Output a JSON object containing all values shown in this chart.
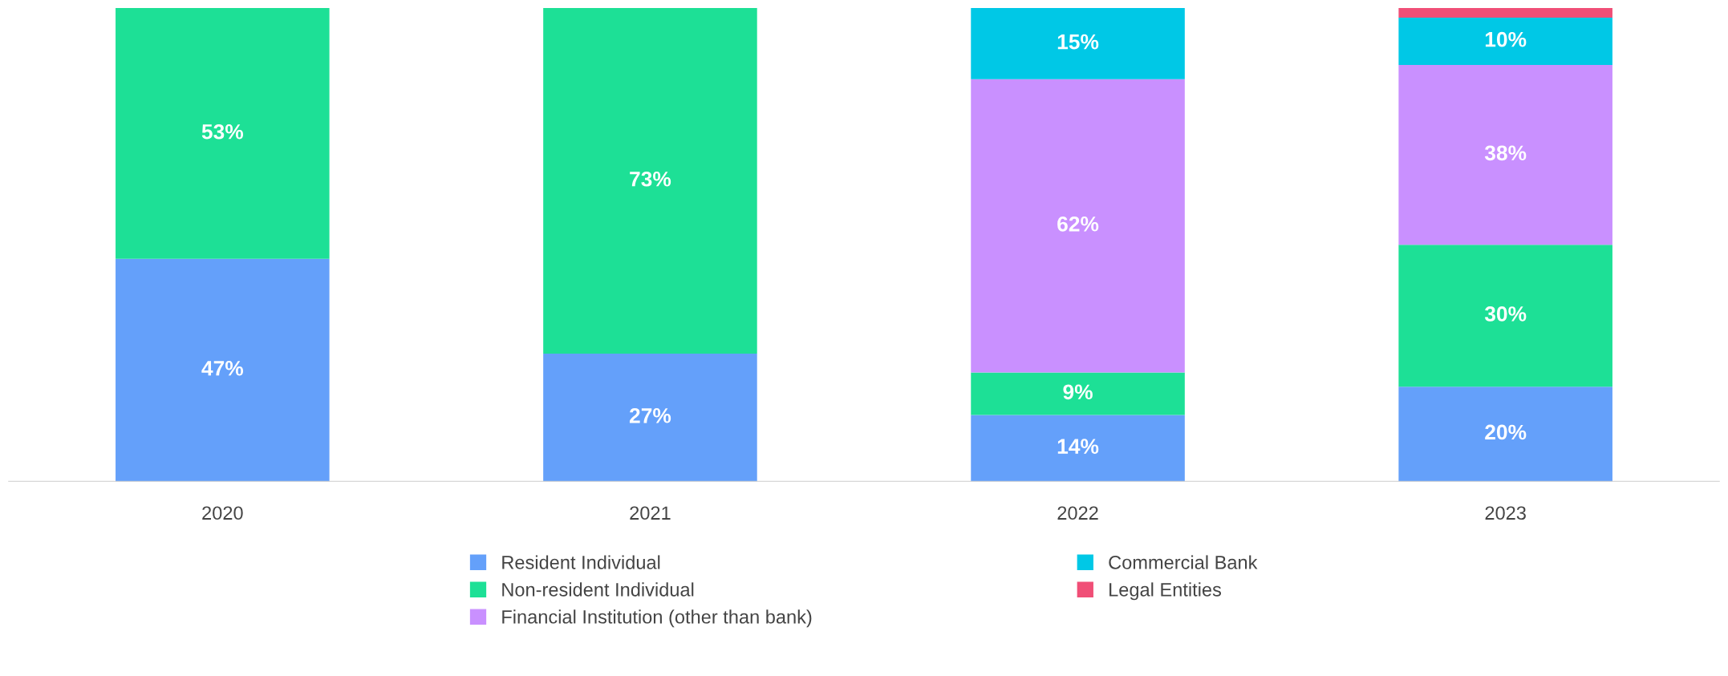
{
  "chart_data": {
    "type": "bar",
    "stacked": true,
    "categories": [
      "2020",
      "2021",
      "2022",
      "2023"
    ],
    "series": [
      {
        "name": "Resident Individual",
        "color": "#64a0fa",
        "values": [
          47,
          27,
          14,
          20
        ],
        "value_labels": [
          "47%",
          "27%",
          "14%",
          "20%"
        ]
      },
      {
        "name": "Non-resident Individual",
        "color": "#1de096",
        "values": [
          53,
          73,
          9,
          30
        ],
        "value_labels": [
          "53%",
          "73%",
          "9%",
          "30%"
        ]
      },
      {
        "name": "Financial Institution (other than bank)",
        "color": "#c990ff",
        "values": [
          null,
          null,
          62,
          38
        ],
        "value_labels": [
          null,
          null,
          "62%",
          "38%"
        ]
      },
      {
        "name": "Commercial Bank",
        "color": "#00c8e6",
        "values": [
          null,
          null,
          15,
          10
        ],
        "value_labels": [
          null,
          null,
          "15%",
          "10%"
        ]
      },
      {
        "name": "Legal Entities",
        "color": "#f04f77",
        "values": [
          null,
          null,
          null,
          2
        ],
        "value_labels": [
          null,
          null,
          null,
          null
        ]
      }
    ],
    "grid": false,
    "legend": "bottom",
    "tick_labels": "x"
  }
}
